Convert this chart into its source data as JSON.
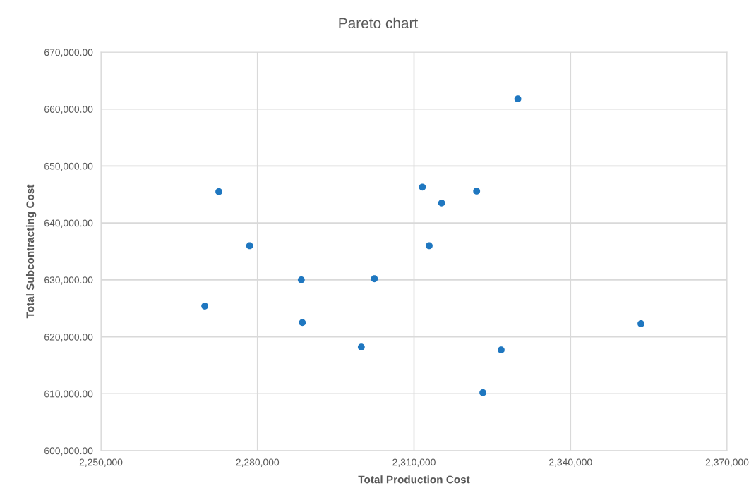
{
  "chart_data": {
    "type": "scatter",
    "title": "Pareto chart",
    "xlabel": "Total Production Cost",
    "ylabel": "Total Subcontracting Cost",
    "x": [
      2272600,
      2278500,
      2269900,
      2288400,
      2288600,
      2299900,
      2302400,
      2311600,
      2312900,
      2315300,
      2322000,
      2323200,
      2326700,
      2329900,
      2353500
    ],
    "values": [
      645500,
      636000,
      625400,
      630000,
      622500,
      618200,
      630200,
      646300,
      636000,
      643500,
      645600,
      610200,
      617700,
      661800,
      622300
    ],
    "color": "#1f77c0",
    "marker": "circle",
    "xlim": [
      2250000,
      2370000
    ],
    "ylim": [
      600000,
      670000
    ],
    "xticks": [
      {
        "value": 2250000,
        "label": "2,250,000"
      },
      {
        "value": 2280000,
        "label": "2,280,000"
      },
      {
        "value": 2310000,
        "label": "2,310,000"
      },
      {
        "value": 2340000,
        "label": "2,340,000"
      },
      {
        "value": 2370000,
        "label": "2,370,000"
      }
    ],
    "yticks": [
      {
        "value": 600000,
        "label": "600,000.00"
      },
      {
        "value": 610000,
        "label": "610,000.00"
      },
      {
        "value": 620000,
        "label": "620,000.00"
      },
      {
        "value": 630000,
        "label": "630,000.00"
      },
      {
        "value": 640000,
        "label": "640,000.00"
      },
      {
        "value": 650000,
        "label": "650,000.00"
      },
      {
        "value": 660000,
        "label": "660,000.00"
      },
      {
        "value": 670000,
        "label": "670,000.00"
      }
    ],
    "grid": true
  }
}
